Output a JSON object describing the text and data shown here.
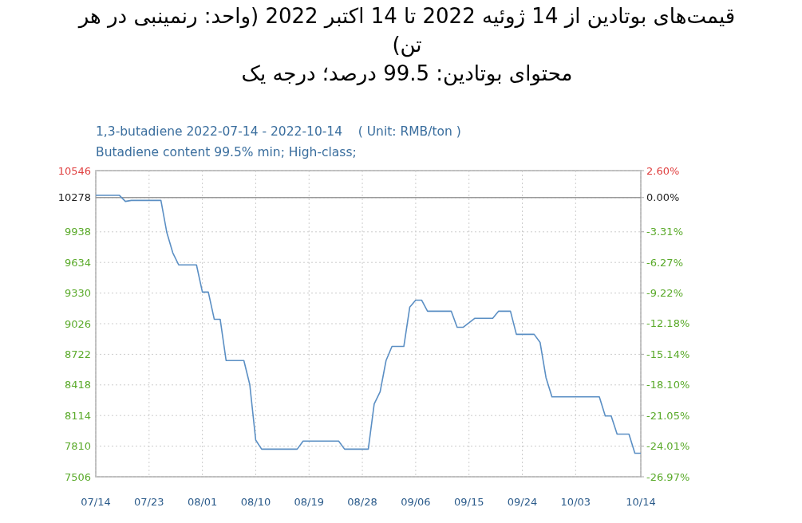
{
  "chart_data": {
    "type": "line",
    "title": "قیمت‌های بوتادین از 14 ژوئیه 2022 تا 14 اکتبر 2022 (واحد: رنمینبی در هر تن)",
    "subtitle": "محتوای بوتادین: 99.5 درصد؛ درجه یک",
    "annotations": [
      "1,3-butadiene 2022-07-14 - 2022-10-14    ( Unit: RMB/ton )",
      "Butadiene content 99.5% min; High-class;"
    ],
    "x": [
      "2022-07-14",
      "2022-07-18",
      "2022-07-19",
      "2022-07-20",
      "2022-07-25",
      "2022-07-26",
      "2022-07-27",
      "2022-07-28",
      "2022-07-31",
      "2022-08-01",
      "2022-08-02",
      "2022-08-03",
      "2022-08-04",
      "2022-08-05",
      "2022-08-08",
      "2022-08-09",
      "2022-08-10",
      "2022-08-11",
      "2022-08-17",
      "2022-08-18",
      "2022-08-24",
      "2022-08-25",
      "2022-08-29",
      "2022-08-30",
      "2022-08-31",
      "2022-09-01",
      "2022-09-02",
      "2022-09-04",
      "2022-09-05",
      "2022-09-06",
      "2022-09-07",
      "2022-09-08",
      "2022-09-12",
      "2022-09-13",
      "2022-09-14",
      "2022-09-16",
      "2022-09-19",
      "2022-09-20",
      "2022-09-22",
      "2022-09-23",
      "2022-09-26",
      "2022-09-27",
      "2022-09-28",
      "2022-09-29",
      "2022-10-07",
      "2022-10-08",
      "2022-10-09",
      "2022-10-10",
      "2022-10-12",
      "2022-10-13",
      "2022-10-14"
    ],
    "series": [
      {
        "color": "#5b8fc4",
        "values": [
          10300,
          10300,
          10240,
          10250,
          10250,
          9930,
          9730,
          9610,
          9610,
          9340,
          9340,
          9070,
          9070,
          8660,
          8660,
          8420,
          7870,
          7780,
          7780,
          7860,
          7860,
          7780,
          7780,
          8230,
          8350,
          8660,
          8800,
          8800,
          9190,
          9260,
          9260,
          9150,
          9150,
          8990,
          8990,
          9080,
          9080,
          9150,
          9150,
          8920,
          8920,
          8840,
          8490,
          8300,
          8300,
          8110,
          8110,
          7930,
          7930,
          7740,
          7740
        ]
      }
    ],
    "xlim": [
      "2022-07-14",
      "2022-10-14"
    ],
    "xticks": [
      {
        "value": "2022-07-14",
        "label": "07/14"
      },
      {
        "value": "2022-07-23",
        "label": "07/23"
      },
      {
        "value": "2022-08-01",
        "label": "08/01"
      },
      {
        "value": "2022-08-10",
        "label": "08/10"
      },
      {
        "value": "2022-08-19",
        "label": "08/19"
      },
      {
        "value": "2022-08-28",
        "label": "08/28"
      },
      {
        "value": "2022-09-06",
        "label": "09/06"
      },
      {
        "value": "2022-09-15",
        "label": "09/15"
      },
      {
        "value": "2022-09-24",
        "label": "09/24"
      },
      {
        "value": "2022-10-03",
        "label": "10/03"
      },
      {
        "value": "2022-10-14",
        "label": "10/14"
      }
    ],
    "ylim": [
      7506,
      10546
    ],
    "yticks": [
      7506,
      7810,
      8114,
      8418,
      8722,
      9026,
      9330,
      9634,
      9938,
      10278,
      10546
    ],
    "y2lim": [
      -26.97,
      2.6
    ],
    "y2ticks": [
      {
        "value": -26.97,
        "label": "-26.97%"
      },
      {
        "value": -24.01,
        "label": "-24.01%"
      },
      {
        "value": -21.05,
        "label": "-21.05%"
      },
      {
        "value": -18.1,
        "label": "-18.10%"
      },
      {
        "value": -15.14,
        "label": "-15.14%"
      },
      {
        "value": -12.18,
        "label": "-12.18%"
      },
      {
        "value": -9.22,
        "label": "-9.22%"
      },
      {
        "value": -6.27,
        "label": "-6.27%"
      },
      {
        "value": -3.31,
        "label": "-3.31%"
      },
      {
        "value": 0,
        "label": "0.00%"
      },
      {
        "value": 2.6,
        "label": "2.60%"
      }
    ],
    "ref_lines": [
      {
        "axis": "y2",
        "value": 0,
        "color": "#999999"
      }
    ],
    "grid": true,
    "marker": "none",
    "line_style": "solid"
  }
}
